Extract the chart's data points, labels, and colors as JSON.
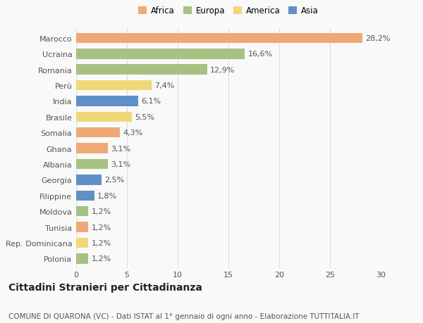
{
  "categories": [
    "Marocco",
    "Ucraina",
    "Romania",
    "Perù",
    "India",
    "Brasile",
    "Somalia",
    "Ghana",
    "Albania",
    "Georgia",
    "Filippine",
    "Moldova",
    "Tunisia",
    "Rep. Dominicana",
    "Polonia"
  ],
  "values": [
    28.2,
    16.6,
    12.9,
    7.4,
    6.1,
    5.5,
    4.3,
    3.1,
    3.1,
    2.5,
    1.8,
    1.2,
    1.2,
    1.2,
    1.2
  ],
  "continents": [
    "Africa",
    "Europa",
    "Europa",
    "America",
    "Asia",
    "America",
    "Africa",
    "Africa",
    "Europa",
    "Asia",
    "Asia",
    "Europa",
    "Africa",
    "America",
    "Europa"
  ],
  "colors": {
    "Africa": "#F0A875",
    "Europa": "#A8C080",
    "America": "#F0D878",
    "Asia": "#6090C8"
  },
  "legend_order": [
    "Africa",
    "Europa",
    "America",
    "Asia"
  ],
  "title": "Cittadini Stranieri per Cittadinanza",
  "subtitle": "COMUNE DI QUARONA (VC) - Dati ISTAT al 1° gennaio di ogni anno - Elaborazione TUTTITALIA.IT",
  "xlim": [
    0,
    30
  ],
  "xticks": [
    0,
    5,
    10,
    15,
    20,
    25,
    30
  ],
  "background_color": "#f9f9f9",
  "bar_height": 0.65,
  "label_fontsize": 8,
  "tick_fontsize": 8,
  "title_fontsize": 10,
  "subtitle_fontsize": 7.5
}
